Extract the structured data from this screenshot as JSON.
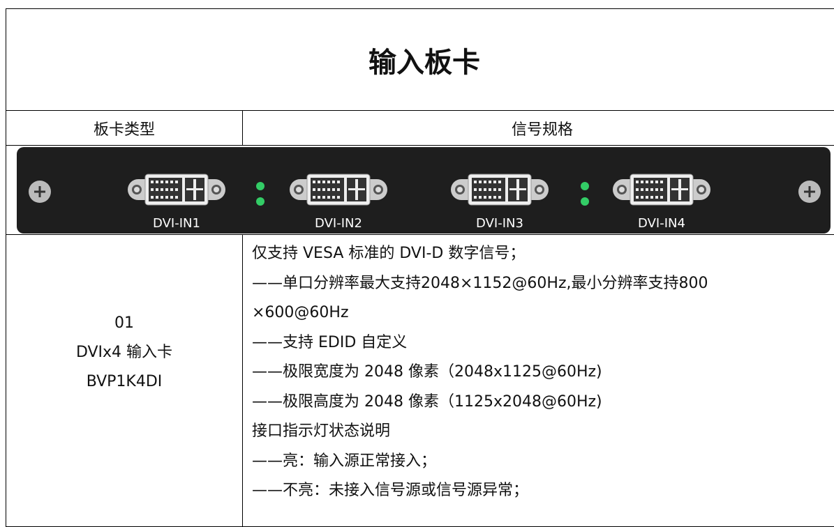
{
  "title": "输入板卡",
  "table": {
    "headers": [
      "板卡类型",
      "信号规格"
    ],
    "ports": [
      "DVI-IN1",
      "DVI-IN2",
      "DVI-IN3",
      "DVI-IN4"
    ],
    "rows": [
      {
        "card": [
          "01",
          "DVIx4 输入卡",
          "BVP1K4DI"
        ],
        "spec": [
          "仅支持 VESA 标准的 DVI-D 数字信号；",
          "——单口分辨率最大支持2048×1152@60Hz,最小分辨率支持800",
          "×600@60Hz",
          "——支持 EDID 自定义",
          "——极限宽度为 2048 像素（2048x1125@60Hz)",
          "——极限高度为 2048 像素（1125x2048@60Hz)",
          "接口指示灯状态说明",
          "——亮：输入源正常接入；",
          "——不亮：未接入信号源或信号源异常；"
        ]
      }
    ]
  }
}
